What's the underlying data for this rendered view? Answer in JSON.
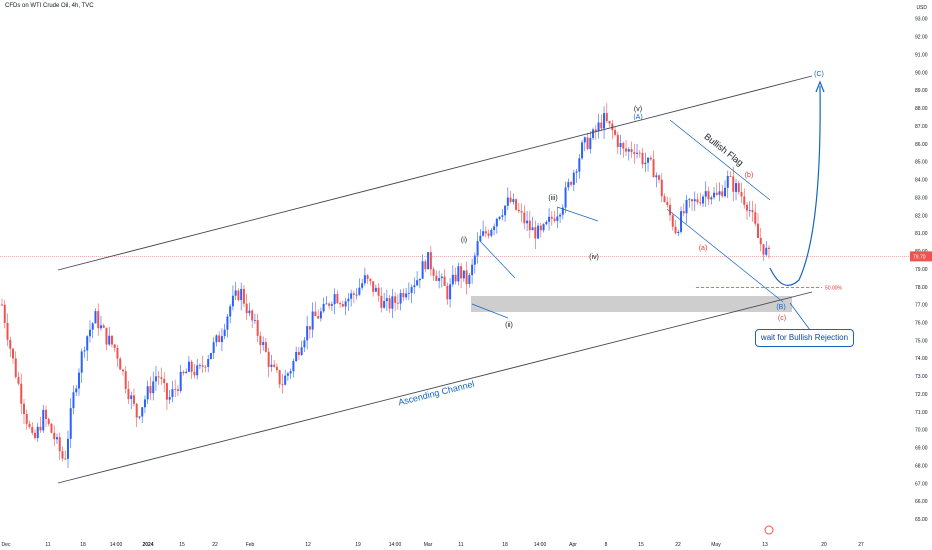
{
  "header": {
    "title": "CFDs on WTI Crude Oil, 4h, TVC",
    "currency": "USD"
  },
  "colors": {
    "up": "#2962ff",
    "down": "#ef5350",
    "annotation_blue": "#1565c0",
    "annotation_red": "#e53935",
    "channel": "#434651",
    "zone": "#bdbdbd"
  },
  "chart_data": {
    "type": "candlestick",
    "title": "CFDs on WTI Crude Oil, 4h, TVC",
    "x_ticks": [
      "Dec",
      "11",
      "18",
      "14:00",
      "2024",
      "15",
      "22",
      "Feb",
      "12",
      "19",
      "14:00",
      "Mar",
      "11",
      "18",
      "14:00",
      "Apr",
      "8",
      "15",
      "22",
      "May",
      "13",
      "20",
      "27"
    ],
    "y_ticks": [
      "93.00",
      "92.00",
      "91.00",
      "90.00",
      "89.00",
      "88.00",
      "87.00",
      "86.00",
      "85.00",
      "84.00",
      "83.00",
      "82.00",
      "81.00",
      "80.00",
      "79.00",
      "78.00",
      "77.00",
      "76.00",
      "75.00",
      "74.00",
      "73.00",
      "72.00",
      "71.00",
      "70.00",
      "69.00",
      "68.00",
      "67.00",
      "66.00",
      "65.00"
    ],
    "ylim": [
      64.5,
      93.6
    ],
    "last_price": "79.70",
    "fib_level_label": "50.00%",
    "fib_level_value": 77.95,
    "series": [
      {
        "name": "price",
        "points": [
          [
            "Dec 4",
            77.0
          ],
          [
            "Dec 7",
            74.0
          ],
          [
            "Dec 8",
            71.5
          ],
          [
            "Dec 11",
            69.2
          ],
          [
            "Dec 13",
            70.8
          ],
          [
            "Dec 13",
            69.6
          ],
          [
            "Dec 15",
            68.2
          ],
          [
            "Dec 18",
            72.3
          ],
          [
            "Dec 20",
            75.0
          ],
          [
            "Dec 22",
            76.3
          ],
          [
            "Dec 26",
            75.2
          ],
          [
            "Dec 28",
            74.5
          ],
          [
            "Jan 2",
            72.5
          ],
          [
            "Jan 4",
            70.8
          ],
          [
            "Jan 8",
            72.0
          ],
          [
            "Jan 10",
            73.2
          ],
          [
            "Jan 12",
            71.6
          ],
          [
            "Jan 15",
            72.6
          ],
          [
            "Jan 17",
            73.4
          ],
          [
            "Jan 19",
            73.2
          ],
          [
            "Jan 22",
            74.3
          ],
          [
            "Jan 24",
            75.2
          ],
          [
            "Jan 26",
            76.9
          ],
          [
            "Jan 29",
            77.8
          ],
          [
            "Jan 31",
            76.2
          ],
          [
            "Feb 2",
            75.0
          ],
          [
            "Feb 4",
            73.4
          ],
          [
            "Feb 6",
            72.6
          ],
          [
            "Feb 8",
            73.6
          ],
          [
            "Feb 10",
            75.2
          ],
          [
            "Feb 12",
            76.2
          ],
          [
            "Feb 14",
            76.6
          ],
          [
            "Feb 16",
            77.6
          ],
          [
            "Feb 19",
            77.2
          ],
          [
            "Feb 21",
            77.6
          ],
          [
            "Feb 23",
            78.4
          ],
          [
            "Feb 26",
            77.8
          ],
          [
            "Feb 28",
            76.9
          ],
          [
            "Mar 1",
            77.2
          ],
          [
            "Mar 3",
            78.0
          ],
          [
            "Mar 5",
            78.4
          ],
          [
            "Mar 7",
            79.6
          ],
          [
            "Mar 9",
            78.6
          ],
          [
            "Mar 11",
            77.6
          ],
          [
            "Mar 12",
            78.9
          ],
          [
            "Mar 14",
            78.2
          ],
          [
            "Mar 16",
            80.6
          ],
          [
            "Mar 18",
            81.2
          ],
          [
            "Mar 20",
            82.2
          ],
          [
            "Mar 22",
            82.8
          ],
          [
            "Mar 24",
            82.0
          ],
          [
            "Mar 26",
            81.2
          ],
          [
            "Mar 28",
            80.9
          ],
          [
            "Mar 30",
            81.8
          ],
          [
            "Apr 1",
            82.6
          ],
          [
            "Apr 3",
            84.2
          ],
          [
            "Apr 5",
            85.8
          ],
          [
            "Apr 7",
            86.4
          ],
          [
            "Apr 9",
            87.4
          ],
          [
            "Apr 11",
            86.6
          ],
          [
            "Apr 13",
            85.5
          ],
          [
            "Apr 15",
            85.8
          ],
          [
            "Apr 17",
            85.0
          ],
          [
            "Apr 18",
            84.5
          ],
          [
            "Apr 20",
            82.6
          ],
          [
            "Apr 22",
            81.2
          ],
          [
            "Apr 24",
            82.4
          ],
          [
            "Apr 26",
            82.8
          ],
          [
            "Apr 28",
            83.4
          ],
          [
            "Apr 29",
            83.0
          ],
          [
            "Apr 30",
            84.0
          ],
          [
            "May 1",
            83.4
          ],
          [
            "May 2",
            82.6
          ],
          [
            "May 3",
            80.6
          ],
          [
            "May 4",
            79.7
          ]
        ]
      }
    ]
  },
  "annotations": {
    "wave_i": "(i)",
    "wave_ii": "(ii)",
    "wave_iii": "(iii)",
    "wave_iv": "(iv)",
    "wave_v": "(v)",
    "wave_A": "(A)",
    "wave_B": "(B)",
    "wave_C": "(C)",
    "wave_a": "(a)",
    "wave_b": "(b)",
    "wave_c": "(c)",
    "bullish_flag": "Bullish Flag",
    "ascending_channel": "Ascending Channel",
    "callout": "wait for Bullish Rejection"
  }
}
